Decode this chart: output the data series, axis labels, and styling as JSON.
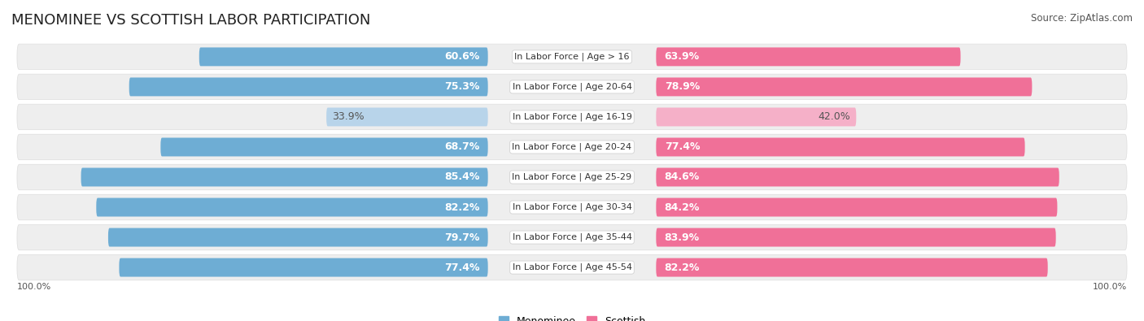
{
  "title": "MENOMINEE VS SCOTTISH LABOR PARTICIPATION",
  "source": "Source: ZipAtlas.com",
  "categories": [
    "In Labor Force | Age > 16",
    "In Labor Force | Age 20-64",
    "In Labor Force | Age 16-19",
    "In Labor Force | Age 20-24",
    "In Labor Force | Age 25-29",
    "In Labor Force | Age 30-34",
    "In Labor Force | Age 35-44",
    "In Labor Force | Age 45-54"
  ],
  "menominee_values": [
    60.6,
    75.3,
    33.9,
    68.7,
    85.4,
    82.2,
    79.7,
    77.4
  ],
  "scottish_values": [
    63.9,
    78.9,
    42.0,
    77.4,
    84.6,
    84.2,
    83.9,
    82.2
  ],
  "menominee_color": "#6eadd4",
  "menominee_color_light": "#b8d4ea",
  "scottish_color": "#f07098",
  "scottish_color_light": "#f5b0c8",
  "row_bg_color": "#eeeeee",
  "max_value": 100.0,
  "background_color": "#ffffff",
  "title_fontsize": 13,
  "value_fontsize": 9,
  "category_fontsize": 8,
  "legend_fontsize": 9,
  "axis_label": "100.0%"
}
